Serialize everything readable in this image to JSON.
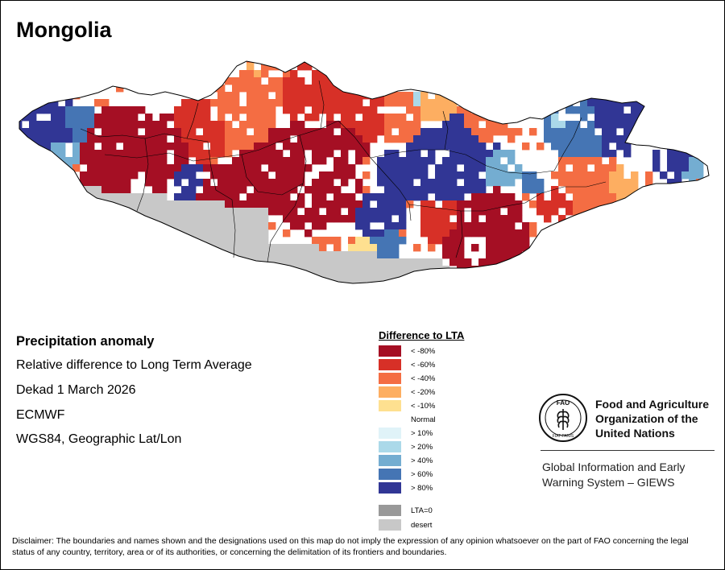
{
  "map": {
    "title": "Mongolia",
    "country": "Mongolia",
    "colors": {
      "lt_m80": "#a50f24",
      "lt_m60": "#d73027",
      "lt_m40": "#f46d43",
      "lt_m20": "#fdae61",
      "lt_m10": "#fee090",
      "gt_10": "#e0f3f8",
      "gt_20": "#abd9e9",
      "gt_40": "#74add1",
      "gt_60": "#4575b4",
      "gt_80": "#313695",
      "lta0": "#999999",
      "desert": "#c8c8c8",
      "normal": "#ffffff"
    }
  },
  "info": {
    "heading": "Precipitation anomaly",
    "subtitle": "Relative difference to Long Term Average",
    "period": "Dekad 1 March 2026",
    "source": "ECMWF",
    "projection": "WGS84, Geographic Lat/Lon"
  },
  "legend": {
    "title": "Difference to LTA",
    "items": [
      {
        "label": "< -80%",
        "color": "#a50f24"
      },
      {
        "label": "< -60%",
        "color": "#d73027"
      },
      {
        "label": "< -40%",
        "color": "#f46d43"
      },
      {
        "label": "< -20%",
        "color": "#fdae61"
      },
      {
        "label": "< -10%",
        "color": "#fee090"
      },
      {
        "label": "Normal",
        "color": "#ffffff"
      },
      {
        "label": "> 10%",
        "color": "#e0f3f8"
      },
      {
        "label": "> 20%",
        "color": "#abd9e9"
      },
      {
        "label": "> 40%",
        "color": "#74add1"
      },
      {
        "label": "> 60%",
        "color": "#4575b4"
      },
      {
        "label": "> 80%",
        "color": "#313695"
      },
      {
        "label": "LTA=0",
        "color": "#999999"
      },
      {
        "label": "desert",
        "color": "#c8c8c8"
      }
    ]
  },
  "fao": {
    "logo_text": "FAO",
    "logo_motto": "FIAT PANIS",
    "name_line1": "Food and Agriculture",
    "name_line2": "Organization of the",
    "name_line3": "United Nations",
    "giews_line1": "Global Information and Early",
    "giews_line2": "Warning System – GIEWS"
  },
  "disclaimer": "Disclaimer: The boundaries and names shown and the designations used on this map do not imply the expression of any opinion whatsoever on the part of FAO concerning the legal status of any country, territory, area or of its authorities, or concerning the delimitation of its frontiers and boundaries."
}
